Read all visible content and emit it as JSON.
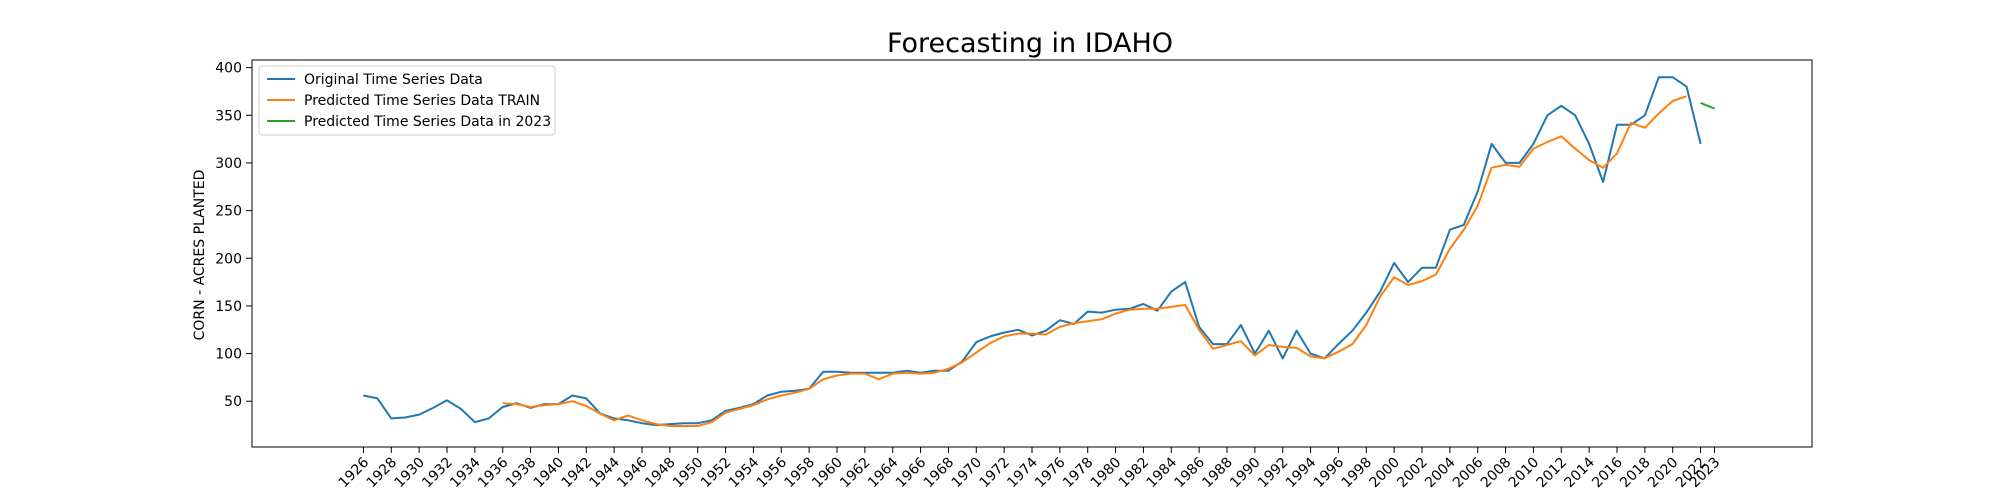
{
  "chart_data": {
    "type": "line",
    "title": "Forecasting in IDAHO",
    "xlabel": "",
    "ylabel": "CORN - ACRES PLANTED",
    "xlim": [
      1918,
      2030
    ],
    "ylim": [
      2,
      408
    ],
    "yticks": [
      50,
      100,
      150,
      200,
      250,
      300,
      350,
      400
    ],
    "xticks": [
      1926,
      1928,
      1930,
      1932,
      1934,
      1936,
      1938,
      1940,
      1942,
      1944,
      1946,
      1948,
      1950,
      1952,
      1954,
      1956,
      1958,
      1960,
      1962,
      1964,
      1966,
      1968,
      1970,
      1972,
      1974,
      1976,
      1978,
      1980,
      1982,
      1984,
      1986,
      1988,
      1990,
      1992,
      1994,
      1996,
      1998,
      2000,
      2002,
      2004,
      2006,
      2008,
      2010,
      2012,
      2014,
      2016,
      2018,
      2020,
      2022,
      2023
    ],
    "grid": false,
    "legend_position": "top-left",
    "series": [
      {
        "name": "Original Time Series Data",
        "color": "#1f77b4",
        "x": [
          1926,
          1927,
          1928,
          1929,
          1930,
          1931,
          1932,
          1933,
          1934,
          1935,
          1936,
          1937,
          1938,
          1939,
          1940,
          1941,
          1942,
          1943,
          1944,
          1945,
          1946,
          1947,
          1948,
          1949,
          1950,
          1951,
          1952,
          1953,
          1954,
          1955,
          1956,
          1957,
          1958,
          1959,
          1960,
          1961,
          1962,
          1963,
          1964,
          1965,
          1966,
          1967,
          1968,
          1969,
          1970,
          1971,
          1972,
          1973,
          1974,
          1975,
          1976,
          1977,
          1978,
          1979,
          1980,
          1981,
          1982,
          1983,
          1984,
          1985,
          1986,
          1987,
          1988,
          1989,
          1990,
          1991,
          1992,
          1993,
          1994,
          1995,
          1996,
          1997,
          1998,
          1999,
          2000,
          2001,
          2002,
          2003,
          2004,
          2005,
          2006,
          2007,
          2008,
          2009,
          2010,
          2011,
          2012,
          2013,
          2014,
          2015,
          2016,
          2017,
          2018,
          2019,
          2020,
          2021,
          2022
        ],
        "values": [
          56,
          53,
          32,
          33,
          36,
          43,
          51,
          42,
          28,
          32,
          44,
          48,
          43,
          47,
          47,
          56,
          53,
          37,
          32,
          30,
          27,
          25,
          26,
          27,
          27,
          30,
          40,
          43,
          47,
          56,
          60,
          61,
          63,
          81,
          81,
          80,
          80,
          80,
          80,
          82,
          80,
          82,
          82,
          92,
          112,
          118,
          122,
          125,
          119,
          124,
          135,
          131,
          144,
          143,
          146,
          147,
          152,
          145,
          165,
          175,
          128,
          110,
          110,
          130,
          100,
          124,
          95,
          124,
          100,
          95,
          110,
          124,
          143,
          165,
          195,
          175,
          190,
          190,
          230,
          235,
          270,
          320,
          300,
          300,
          320,
          350,
          360,
          350,
          320,
          280,
          340,
          340,
          350,
          390,
          390,
          380,
          320
        ]
      },
      {
        "name": "Predicted Time Series Data TRAIN",
        "color": "#ff7f0e",
        "x": [
          1936,
          1937,
          1938,
          1939,
          1940,
          1941,
          1942,
          1943,
          1944,
          1945,
          1946,
          1947,
          1948,
          1949,
          1950,
          1951,
          1952,
          1953,
          1954,
          1955,
          1956,
          1957,
          1958,
          1959,
          1960,
          1961,
          1962,
          1963,
          1964,
          1965,
          1966,
          1967,
          1968,
          1969,
          1970,
          1971,
          1972,
          1973,
          1974,
          1975,
          1976,
          1977,
          1978,
          1979,
          1980,
          1981,
          1982,
          1983,
          1984,
          1985,
          1986,
          1987,
          1988,
          1989,
          1990,
          1991,
          1992,
          1993,
          1994,
          1995,
          1996,
          1997,
          1998,
          1999,
          2000,
          2001,
          2002,
          2003,
          2004,
          2005,
          2006,
          2007,
          2008,
          2009,
          2010,
          2011,
          2012,
          2013,
          2014,
          2015,
          2016,
          2017,
          2018,
          2019,
          2020,
          2021
        ],
        "values": [
          48,
          47,
          44,
          46,
          47,
          50,
          45,
          37,
          30,
          35,
          30,
          26,
          24,
          24,
          24,
          28,
          38,
          42,
          46,
          52,
          56,
          59,
          63,
          73,
          77,
          79,
          79,
          73,
          79,
          80,
          79,
          80,
          84,
          91,
          101,
          111,
          118,
          121,
          121,
          120,
          128,
          132,
          134,
          136,
          142,
          146,
          147,
          147,
          149,
          151,
          125,
          105,
          109,
          113,
          98,
          109,
          107,
          106,
          97,
          95,
          102,
          110,
          130,
          160,
          180,
          172,
          176,
          183,
          210,
          230,
          255,
          295,
          298,
          296,
          315,
          322,
          328,
          315,
          303,
          295,
          310,
          342,
          337,
          352,
          365,
          370
        ]
      },
      {
        "name": "Predicted Time Series Data in 2023",
        "color": "#2ca02c",
        "x": [
          2022,
          2023
        ],
        "values": [
          363,
          357
        ]
      }
    ]
  }
}
